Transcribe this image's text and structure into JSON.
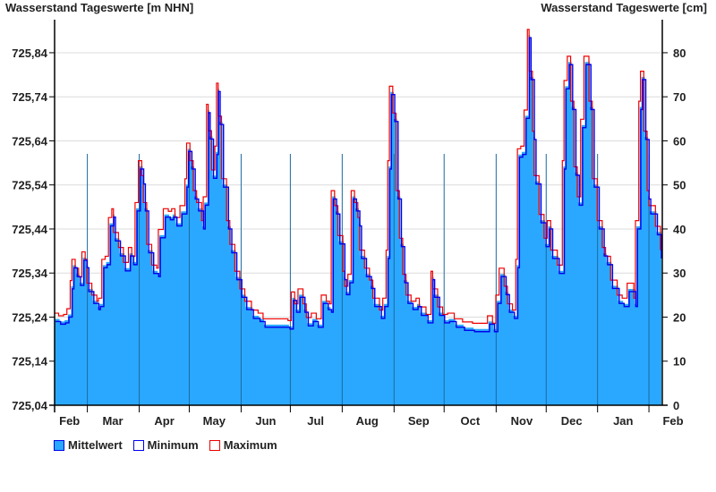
{
  "header": {
    "left_title": "Wasserstand Tageswerte [m NHN]",
    "right_title": "Wasserstand Tageswerte [cm]"
  },
  "legend": [
    {
      "label": "Mittelwert",
      "fill": "#2aa8ff",
      "border": "#0000ee"
    },
    {
      "label": "Minimum",
      "fill": "#ffffff",
      "border": "#0000ee"
    },
    {
      "label": "Maximum",
      "fill": "#ffffff",
      "border": "#ee0000"
    }
  ],
  "chart_data": {
    "type": "area",
    "title": "Wasserstand Tageswerte",
    "ylabel_left": "Wasserstand Tageswerte [m NHN]",
    "ylabel_right": "Wasserstand Tageswerte [cm]",
    "ylim_cm": [
      0,
      87.5
    ],
    "xlim_days": [
      0,
      365
    ],
    "grid": true,
    "legend_position": "bottom-left",
    "left_ticks": [
      {
        "cm": 0,
        "label": "725,04"
      },
      {
        "cm": 10,
        "label": "725,14"
      },
      {
        "cm": 20,
        "label": "725,24"
      },
      {
        "cm": 30,
        "label": "725,34"
      },
      {
        "cm": 40,
        "label": "725,44"
      },
      {
        "cm": 50,
        "label": "725,54"
      },
      {
        "cm": 60,
        "label": "725,64"
      },
      {
        "cm": 70,
        "label": "725,74"
      },
      {
        "cm": 80,
        "label": "725,84"
      }
    ],
    "right_ticks": [
      {
        "cm": 0,
        "label": "0"
      },
      {
        "cm": 10,
        "label": "10"
      },
      {
        "cm": 20,
        "label": "20"
      },
      {
        "cm": 30,
        "label": "30"
      },
      {
        "cm": 40,
        "label": "40"
      },
      {
        "cm": 50,
        "label": "50"
      },
      {
        "cm": 60,
        "label": "60"
      },
      {
        "cm": 70,
        "label": "70"
      },
      {
        "cm": 80,
        "label": "80"
      }
    ],
    "month_boundaries_days": [
      19.7,
      50.9,
      81,
      112.2,
      141.8,
      173,
      204.2,
      234.3,
      265.6,
      295.7,
      326.6,
      357.5
    ],
    "month_labels": [
      {
        "day": 9,
        "label": "Feb"
      },
      {
        "day": 35,
        "label": "Mar"
      },
      {
        "day": 66,
        "label": "Apr"
      },
      {
        "day": 96,
        "label": "May"
      },
      {
        "day": 127,
        "label": "Jun"
      },
      {
        "day": 157,
        "label": "Jul"
      },
      {
        "day": 188,
        "label": "Aug"
      },
      {
        "day": 219,
        "label": "Sep"
      },
      {
        "day": 250,
        "label": "Oct"
      },
      {
        "day": 281,
        "label": "Nov"
      },
      {
        "day": 311,
        "label": "Dec"
      },
      {
        "day": 342,
        "label": "Jan"
      },
      {
        "day": 372,
        "label": "Feb"
      }
    ],
    "series": [
      {
        "name": "Mittelwert",
        "color": "#2aa8ff",
        "points": [
          [
            0,
            19.6
          ],
          [
            3,
            19.0
          ],
          [
            6,
            19.3
          ],
          [
            8,
            20.6
          ],
          [
            10,
            27
          ],
          [
            11,
            31.8
          ],
          [
            13,
            29.8
          ],
          [
            15,
            27.8
          ],
          [
            17,
            33.5
          ],
          [
            19,
            31.8
          ],
          [
            20,
            26.4
          ],
          [
            23,
            23.7
          ],
          [
            26,
            22.3
          ],
          [
            27,
            23
          ],
          [
            29,
            31.8
          ],
          [
            31,
            32.5
          ],
          [
            33,
            41.3
          ],
          [
            35,
            43.3
          ],
          [
            36,
            37.9
          ],
          [
            39,
            34.5
          ],
          [
            42,
            31.1
          ],
          [
            45,
            34.5
          ],
          [
            47,
            32.5
          ],
          [
            49,
            44.7
          ],
          [
            51,
            54.2
          ],
          [
            53,
            50.8
          ],
          [
            54,
            44.7
          ],
          [
            56,
            35.2
          ],
          [
            59,
            30.5
          ],
          [
            62,
            29.8
          ],
          [
            63,
            38.6
          ],
          [
            66,
            43.3
          ],
          [
            69,
            42.7
          ],
          [
            71,
            43.3
          ],
          [
            73,
            41.3
          ],
          [
            76,
            44
          ],
          [
            79,
            50.1
          ],
          [
            80,
            58.2
          ],
          [
            82,
            54.2
          ],
          [
            84,
            47.4
          ],
          [
            86,
            44.7
          ],
          [
            89,
            40.6
          ],
          [
            90,
            46
          ],
          [
            92,
            67
          ],
          [
            93,
            61
          ],
          [
            95,
            52.1
          ],
          [
            97,
            57.5
          ],
          [
            98,
            71.8
          ],
          [
            99,
            64.3
          ],
          [
            101,
            50.1
          ],
          [
            104,
            40.6
          ],
          [
            106,
            35.2
          ],
          [
            109,
            29.1
          ],
          [
            112,
            25.1
          ],
          [
            115,
            22.3
          ],
          [
            119,
            20.3
          ],
          [
            123,
            19.6
          ],
          [
            126,
            18.3
          ],
          [
            133,
            18.3
          ],
          [
            141,
            17.9
          ],
          [
            143,
            24.4
          ],
          [
            145,
            21.7
          ],
          [
            147,
            25.1
          ],
          [
            150,
            21.7
          ],
          [
            152,
            18.6
          ],
          [
            155,
            19.6
          ],
          [
            158,
            18.3
          ],
          [
            161,
            23.7
          ],
          [
            164,
            22.3
          ],
          [
            166,
            21.7
          ],
          [
            167,
            47.4
          ],
          [
            169,
            44
          ],
          [
            171,
            37.2
          ],
          [
            174,
            29.1
          ],
          [
            175,
            25.7
          ],
          [
            177,
            28.4
          ],
          [
            179,
            47.4
          ],
          [
            181,
            44.7
          ],
          [
            183,
            41.3
          ],
          [
            184,
            33.9
          ],
          [
            187,
            29.8
          ],
          [
            190,
            27.1
          ],
          [
            192,
            23
          ],
          [
            196,
            20.3
          ],
          [
            198,
            23
          ],
          [
            200,
            33.9
          ],
          [
            201,
            54.2
          ],
          [
            202,
            71.1
          ],
          [
            204,
            65
          ],
          [
            206,
            47.4
          ],
          [
            208,
            36.6
          ],
          [
            210,
            28.4
          ],
          [
            212,
            23.7
          ],
          [
            215,
            22.3
          ],
          [
            218,
            23
          ],
          [
            220,
            21
          ],
          [
            224,
            19.3
          ],
          [
            227,
            29.1
          ],
          [
            228,
            25.1
          ],
          [
            231,
            21
          ],
          [
            234,
            19.3
          ],
          [
            237,
            19.6
          ],
          [
            241,
            18.3
          ],
          [
            246,
            17.6
          ],
          [
            252,
            17.3
          ],
          [
            257,
            17.3
          ],
          [
            261,
            19
          ],
          [
            264,
            17.3
          ],
          [
            266,
            23.7
          ],
          [
            268,
            29.8
          ],
          [
            271,
            25.7
          ],
          [
            273,
            21.7
          ],
          [
            276,
            20.3
          ],
          [
            278,
            31.8
          ],
          [
            279,
            56.9
          ],
          [
            281,
            57.5
          ],
          [
            283,
            65.7
          ],
          [
            285,
            84
          ],
          [
            286,
            74.5
          ],
          [
            288,
            60.9
          ],
          [
            289,
            50.8
          ],
          [
            292,
            42
          ],
          [
            295,
            36.6
          ],
          [
            297,
            40.6
          ],
          [
            299,
            33.9
          ],
          [
            303,
            30.5
          ],
          [
            306,
            54.2
          ],
          [
            307,
            72.4
          ],
          [
            309,
            77.9
          ],
          [
            311,
            67.7
          ],
          [
            313,
            52.8
          ],
          [
            315,
            46
          ],
          [
            317,
            63.6
          ],
          [
            319,
            77.9
          ],
          [
            322,
            67.7
          ],
          [
            324,
            50.1
          ],
          [
            327,
            40.6
          ],
          [
            330,
            34.5
          ],
          [
            332,
            32.5
          ],
          [
            335,
            27.1
          ],
          [
            339,
            23.7
          ],
          [
            342,
            23
          ],
          [
            345,
            26.4
          ],
          [
            349,
            23
          ],
          [
            350,
            40.6
          ],
          [
            352,
            67.7
          ],
          [
            353,
            74.5
          ],
          [
            355,
            60.9
          ],
          [
            357,
            47.4
          ],
          [
            358,
            44
          ],
          [
            360,
            44
          ],
          [
            362,
            39.3
          ],
          [
            365,
            33.9
          ]
        ]
      },
      {
        "name": "Minimum",
        "color": "#0000ee",
        "offset_from_mean_cm": -0.6,
        "lag_days": 0.6
      },
      {
        "name": "Maximum",
        "color": "#ee0000",
        "offset_from_mean_cm": 1.3,
        "lag_days": -0.6
      }
    ]
  }
}
